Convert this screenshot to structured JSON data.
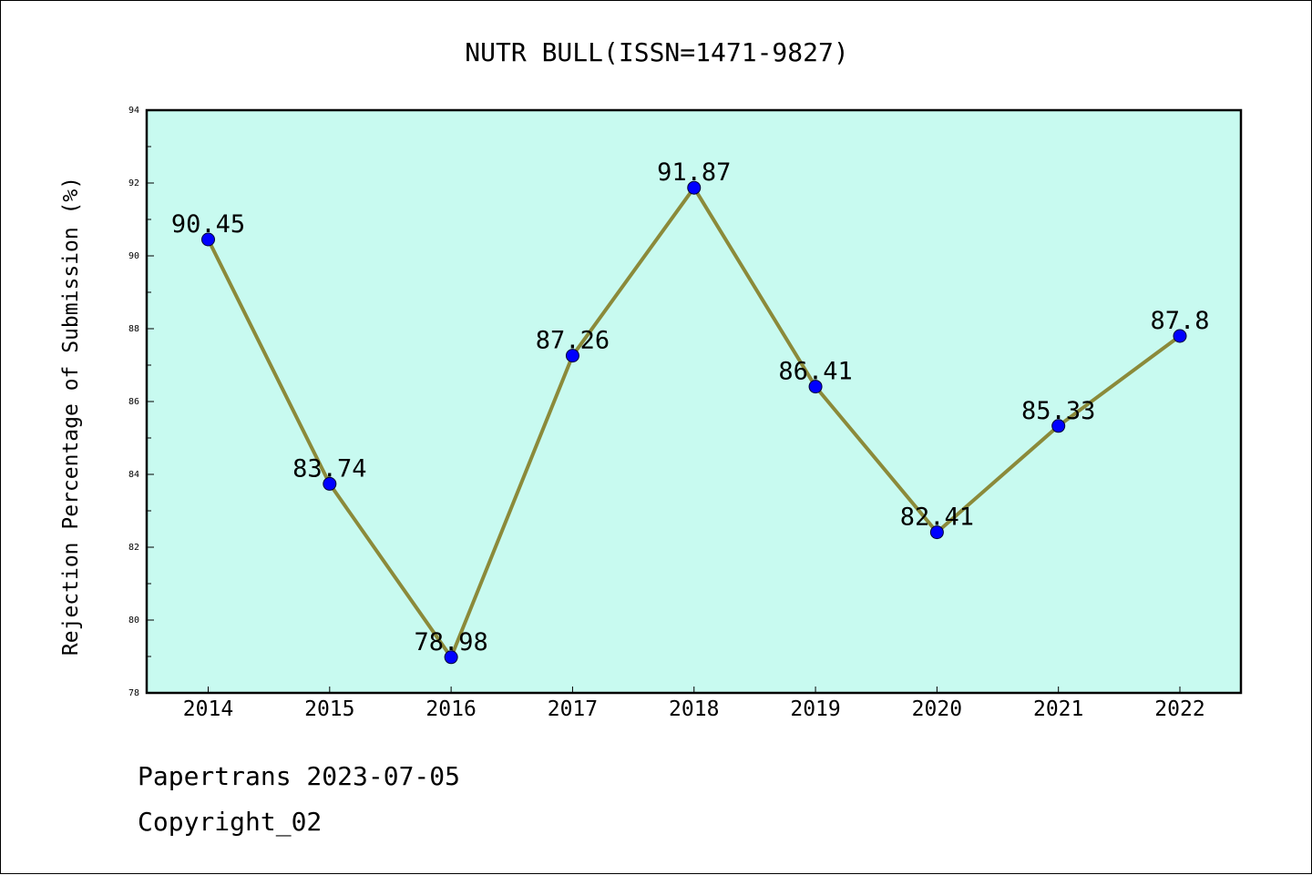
{
  "chart_data": {
    "type": "line",
    "title": "NUTR BULL(ISSN=1471-9827)",
    "xlabel": "",
    "ylabel": "Rejection Percentage of Submission (%)",
    "categories": [
      "2014",
      "2015",
      "2016",
      "2017",
      "2018",
      "2019",
      "2020",
      "2021",
      "2022"
    ],
    "series": [
      {
        "values": [
          90.45,
          83.74,
          78.98,
          87.26,
          91.87,
          86.41,
          82.41,
          85.33,
          87.8
        ],
        "labels": [
          "90.45",
          "83.74",
          "78.98",
          "87.26",
          "91.87",
          "86.41",
          "82.41",
          "85.33",
          "87.8"
        ]
      }
    ],
    "ylim": [
      78,
      94
    ],
    "yticks": [
      "78",
      "80",
      "82",
      "84",
      "86",
      "88",
      "90",
      "92",
      "94"
    ],
    "grid": false,
    "colors": {
      "plot_background": "#c8faf0",
      "line": "#8b8a3a",
      "marker": "#0000ff",
      "frame": "#000000"
    }
  },
  "footer": {
    "line1": "Papertrans 2023-07-05",
    "line2": "Copyright_02"
  }
}
